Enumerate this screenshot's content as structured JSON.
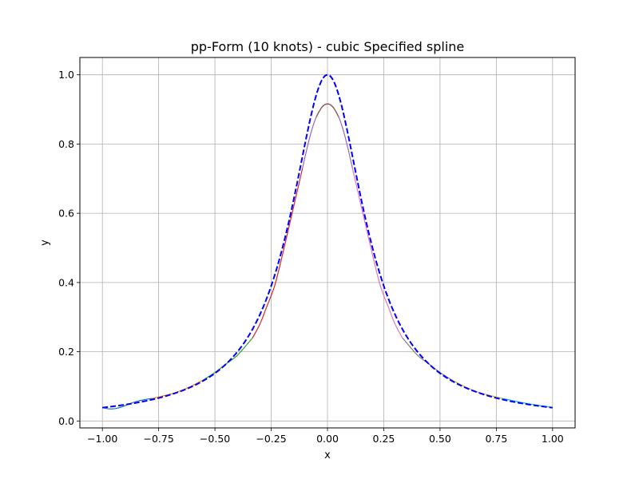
{
  "chart_data": {
    "type": "line",
    "title": "pp-Form (10 knots) - cubic Specified spline",
    "xlabel": "x",
    "ylabel": "y",
    "xlim": [
      -1.1,
      1.1
    ],
    "ylim": [
      -0.02,
      1.05
    ],
    "grid": true,
    "xticks": [
      -1.0,
      -0.75,
      -0.5,
      -0.25,
      0.0,
      0.25,
      0.5,
      0.75,
      1.0
    ],
    "yticks": [
      0.0,
      0.2,
      0.4,
      0.6,
      0.8,
      1.0
    ],
    "xtick_labels": [
      "−1.00",
      "−0.75",
      "−0.50",
      "−0.25",
      "0.00",
      "0.25",
      "0.50",
      "0.75",
      "1.00"
    ],
    "ytick_labels": [
      "0.0",
      "0.2",
      "0.4",
      "0.6",
      "0.8",
      "1.0"
    ],
    "series": [
      {
        "color": "#1f77b4",
        "style": "solid",
        "points": [
          [
            -1.0,
            0.039
          ],
          [
            -0.97,
            0.035
          ],
          [
            -0.94,
            0.036
          ],
          [
            -0.9,
            0.044
          ],
          [
            -0.87,
            0.052
          ],
          [
            -0.84,
            0.058
          ],
          [
            -0.8,
            0.063
          ],
          [
            -0.778,
            0.065
          ]
        ]
      },
      {
        "color": "#ff7f0e",
        "style": "solid",
        "points": [
          [
            -0.778,
            0.065
          ],
          [
            -0.72,
            0.074
          ],
          [
            -0.67,
            0.083
          ],
          [
            -0.62,
            0.096
          ],
          [
            -0.556,
            0.117
          ]
        ]
      },
      {
        "color": "#2ca02c",
        "style": "solid",
        "points": [
          [
            -0.556,
            0.117
          ],
          [
            -0.5,
            0.14
          ],
          [
            -0.45,
            0.165
          ],
          [
            -0.4,
            0.19
          ],
          [
            -0.333,
            0.24
          ]
        ]
      },
      {
        "color": "#d62728",
        "style": "solid",
        "points": [
          [
            -0.333,
            0.24
          ],
          [
            -0.3,
            0.28
          ],
          [
            -0.27,
            0.33
          ],
          [
            -0.235,
            0.39
          ],
          [
            -0.2,
            0.48
          ],
          [
            -0.15,
            0.62
          ],
          [
            -0.111,
            0.73
          ]
        ]
      },
      {
        "color": "#9467bd",
        "style": "solid",
        "points": [
          [
            -0.111,
            0.73
          ],
          [
            -0.09,
            0.79
          ],
          [
            -0.07,
            0.84
          ],
          [
            -0.05,
            0.878
          ],
          [
            -0.03,
            0.902
          ],
          [
            -0.015,
            0.913
          ],
          [
            0.0,
            0.916
          ],
          [
            0.015,
            0.913
          ],
          [
            0.03,
            0.902
          ],
          [
            0.05,
            0.878
          ],
          [
            0.07,
            0.84
          ],
          [
            0.09,
            0.79
          ],
          [
            0.111,
            0.73
          ]
        ]
      },
      {
        "color": "#8c564b",
        "style": "solid",
        "points": [
          [
            -0.05,
            0.878
          ],
          [
            -0.025,
            0.906
          ],
          [
            0.0,
            0.916
          ],
          [
            0.025,
            0.906
          ],
          [
            0.05,
            0.878
          ]
        ]
      },
      {
        "color": "#e377c2",
        "style": "solid",
        "points": [
          [
            0.111,
            0.73
          ],
          [
            0.15,
            0.62
          ],
          [
            0.2,
            0.48
          ],
          [
            0.235,
            0.39
          ],
          [
            0.27,
            0.33
          ],
          [
            0.3,
            0.28
          ],
          [
            0.333,
            0.24
          ]
        ]
      },
      {
        "color": "#7f7f7f",
        "style": "solid",
        "points": [
          [
            0.333,
            0.24
          ],
          [
            0.4,
            0.19
          ],
          [
            0.45,
            0.165
          ],
          [
            0.5,
            0.14
          ],
          [
            0.556,
            0.117
          ]
        ]
      },
      {
        "color": "#bcbd22",
        "style": "solid",
        "points": [
          [
            0.556,
            0.117
          ],
          [
            0.62,
            0.096
          ],
          [
            0.67,
            0.083
          ],
          [
            0.72,
            0.074
          ],
          [
            0.778,
            0.065
          ]
        ]
      },
      {
        "color": "#17becf",
        "style": "solid",
        "points": [
          [
            0.778,
            0.065
          ],
          [
            0.85,
            0.055
          ],
          [
            0.9,
            0.049
          ],
          [
            0.95,
            0.044
          ],
          [
            1.0,
            0.039
          ]
        ]
      },
      {
        "color": "#0000ff",
        "style": "dashed",
        "function": "1/(1+25x^2)",
        "x_range": [
          -1.0,
          1.0
        ]
      }
    ]
  }
}
